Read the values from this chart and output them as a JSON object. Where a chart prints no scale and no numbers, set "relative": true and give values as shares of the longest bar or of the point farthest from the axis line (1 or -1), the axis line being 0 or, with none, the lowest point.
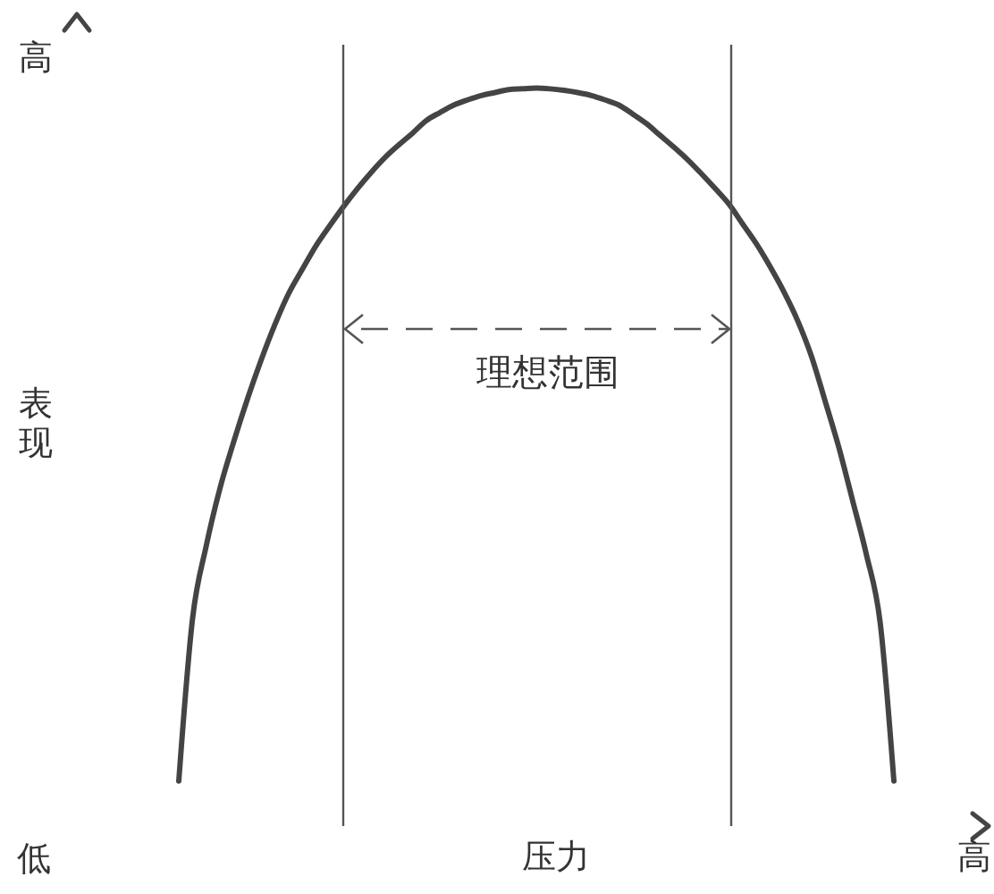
{
  "chart_data": {
    "type": "line",
    "xlabel": "压力",
    "ylabel": "表现",
    "relative": true,
    "categories": [
      null,
      null,
      null,
      null,
      null,
      null,
      null,
      null,
      null,
      null,
      null,
      null,
      null,
      null,
      null,
      null,
      null,
      null,
      null,
      null,
      null,
      null,
      null,
      null,
      null,
      null,
      null,
      null,
      null,
      null,
      null,
      null,
      null,
      null,
      null,
      null,
      null,
      null,
      null,
      null,
      null,
      null,
      null,
      null,
      null,
      null,
      null,
      null,
      null,
      null,
      null,
      null,
      null
    ],
    "values": [
      0.061,
      0.281,
      0.38,
      0.458,
      0.521,
      0.579,
      0.632,
      0.68,
      0.722,
      0.755,
      0.787,
      0.814,
      0.84,
      0.864,
      0.886,
      0.906,
      0.923,
      0.939,
      0.956,
      0.967,
      0.977,
      0.984,
      0.99,
      0.994,
      0.998,
      0.999,
      1,
      0.999,
      0.997,
      0.994,
      0.99,
      0.984,
      0.977,
      0.965,
      0.952,
      0.936,
      0.92,
      0.903,
      0.884,
      0.864,
      0.843,
      0.816,
      0.789,
      0.758,
      0.724,
      0.685,
      0.637,
      0.576,
      0.513,
      0.441,
      0.368,
      0.276,
      0.061
    ],
    "color": "#444444",
    "marker": "none",
    "line_style": "solid",
    "annotations": [
      "高",
      "低",
      "高",
      "理想范围"
    ]
  }
}
